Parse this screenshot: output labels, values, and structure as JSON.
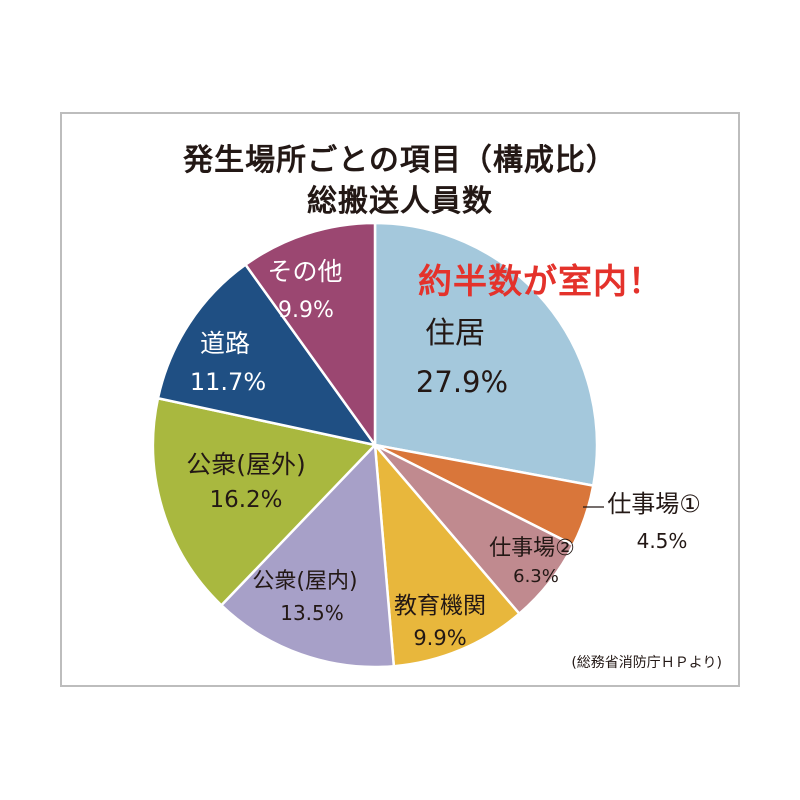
{
  "chart_data": {
    "type": "pie",
    "title": "発生場所ごとの項目（構成比）",
    "subtitle": "総搬送人員数",
    "annotation": "約半数が室内！",
    "source": "(総務省消防庁ＨＰより)",
    "slices": [
      {
        "label": "住居",
        "value_label": "27.9%",
        "value": 27.9,
        "color": "#a4c8dc",
        "text_color": "#231815"
      },
      {
        "label": "仕事場①",
        "value_label": "4.5%",
        "value": 4.5,
        "color": "#d9763a",
        "text_color": "#231815"
      },
      {
        "label": "仕事場②",
        "value_label": "6.3%",
        "value": 6.3,
        "color": "#c08a8f",
        "text_color": "#231815"
      },
      {
        "label": "教育機関",
        "value_label": "9.9%",
        "value": 9.9,
        "color": "#e8b73c",
        "text_color": "#231815"
      },
      {
        "label": "公衆(屋内)",
        "value_label": "13.5%",
        "value": 13.5,
        "color": "#a7a0c8",
        "text_color": "#231815"
      },
      {
        "label": "公衆(屋外)",
        "value_label": "16.2%",
        "value": 16.2,
        "color": "#a9b83f",
        "text_color": "#231815"
      },
      {
        "label": "道路",
        "value_label": "11.7%",
        "value": 11.7,
        "color": "#1f4f83",
        "text_color": "#ffffff"
      },
      {
        "label": "その他",
        "value_label": "9.9%",
        "value": 9.9,
        "color": "#9b4771",
        "text_color": "#ffffff"
      }
    ]
  }
}
